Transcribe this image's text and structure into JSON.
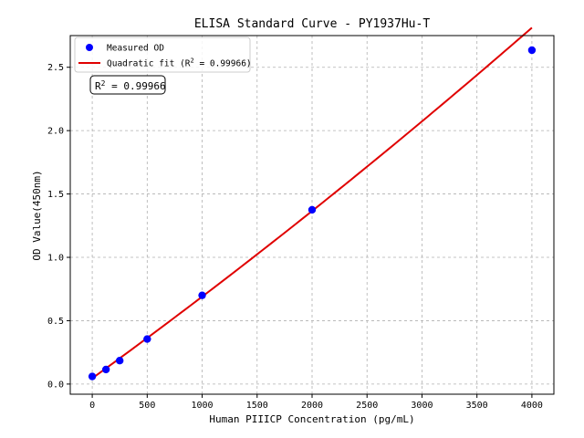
{
  "chart_data": {
    "type": "scatter",
    "title": "ELISA Standard Curve - PY1937Hu-T",
    "xlabel": "Human PIIICP Concentration (pg/mL)",
    "ylabel": "OD Value(450nm)",
    "xlim": [
      -200,
      4200
    ],
    "ylim": [
      -0.08,
      2.75
    ],
    "x_ticks": [
      0,
      500,
      1000,
      1500,
      2000,
      2500,
      3000,
      3500,
      4000
    ],
    "y_ticks": [
      0.0,
      0.5,
      1.0,
      1.5,
      2.0,
      2.5
    ],
    "x_tick_labels": [
      "0",
      "500",
      "1000",
      "1500",
      "2000",
      "2500",
      "3000",
      "3500",
      "4000"
    ],
    "y_tick_labels": [
      "0.0",
      "0.5",
      "1.0",
      "1.5",
      "2.0",
      "2.5"
    ],
    "grid": true,
    "legend_position": "top-left",
    "series": [
      {
        "name": "Measured OD",
        "kind": "points",
        "color": "#0000ff",
        "x": [
          0,
          125,
          250,
          500,
          1000,
          2000,
          4000
        ],
        "y": [
          0.06,
          0.115,
          0.185,
          0.355,
          0.7,
          1.375,
          2.635
        ]
      },
      {
        "name": "Quadratic fit (R² = 0.99966)",
        "legend_base": "Quadratic fit (R",
        "legend_sup": "2",
        "legend_tail": " = 0.99966)",
        "kind": "line",
        "color": "#e00000",
        "x_range": [
          0,
          4000
        ],
        "coefficients": {
          "a": 1.58e-08,
          "b": 0.0006285,
          "c": 0.0455
        }
      }
    ],
    "annotation": {
      "text": "R² = 0.99966",
      "base": "R",
      "sup": "2",
      "tail": " = 0.99966",
      "position": "top-left"
    }
  }
}
